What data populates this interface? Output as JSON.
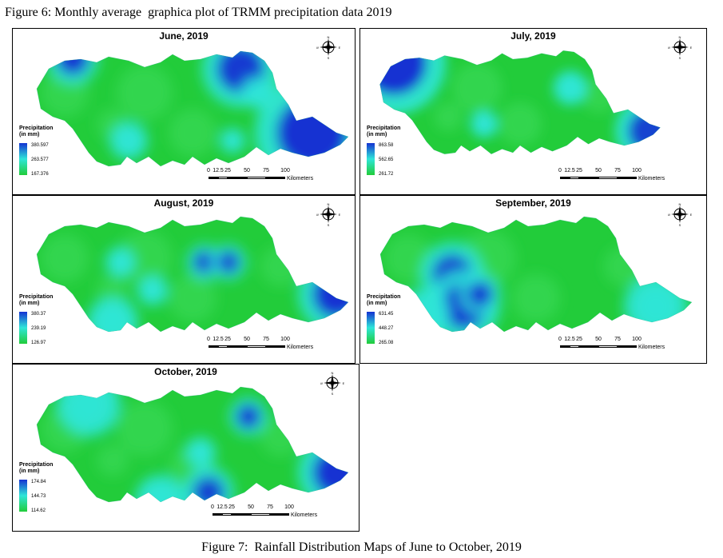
{
  "figure6_caption": "Figure 6: Monthly average  graphica plot of TRMM precipitation data 2019",
  "figure7_caption": "Figure 7:  Rainfall Distribution Maps of June to October, 2019",
  "legend_title_1": "Precipitation",
  "legend_title_2": "(in mm)",
  "scale_ticks": [
    "0",
    "12.5",
    "25",
    "50",
    "75",
    "100"
  ],
  "scale_unit": "Kilometers",
  "compass_letters": {
    "n": "N",
    "s": "S",
    "e": "E",
    "w": "W"
  },
  "colors": {
    "low": "#22cc3a",
    "mid": "#2ee6d8",
    "high": "#1432d2"
  },
  "panels": [
    {
      "id": "june",
      "title": "June, 2019",
      "legend": [
        "380.597",
        "263.577",
        "167.376"
      ]
    },
    {
      "id": "july",
      "title": "July, 2019",
      "legend": [
        "863.58",
        "562.65",
        "261.72"
      ]
    },
    {
      "id": "august",
      "title": "August, 2019",
      "legend": [
        "380.37",
        "239.19",
        "126.97"
      ]
    },
    {
      "id": "september",
      "title": "September, 2019",
      "legend": [
        "631.45",
        "448.27",
        "265.08"
      ]
    },
    {
      "id": "october",
      "title": "October, 2019",
      "legend": [
        "174.84",
        "144.73",
        "114.62"
      ]
    }
  ]
}
